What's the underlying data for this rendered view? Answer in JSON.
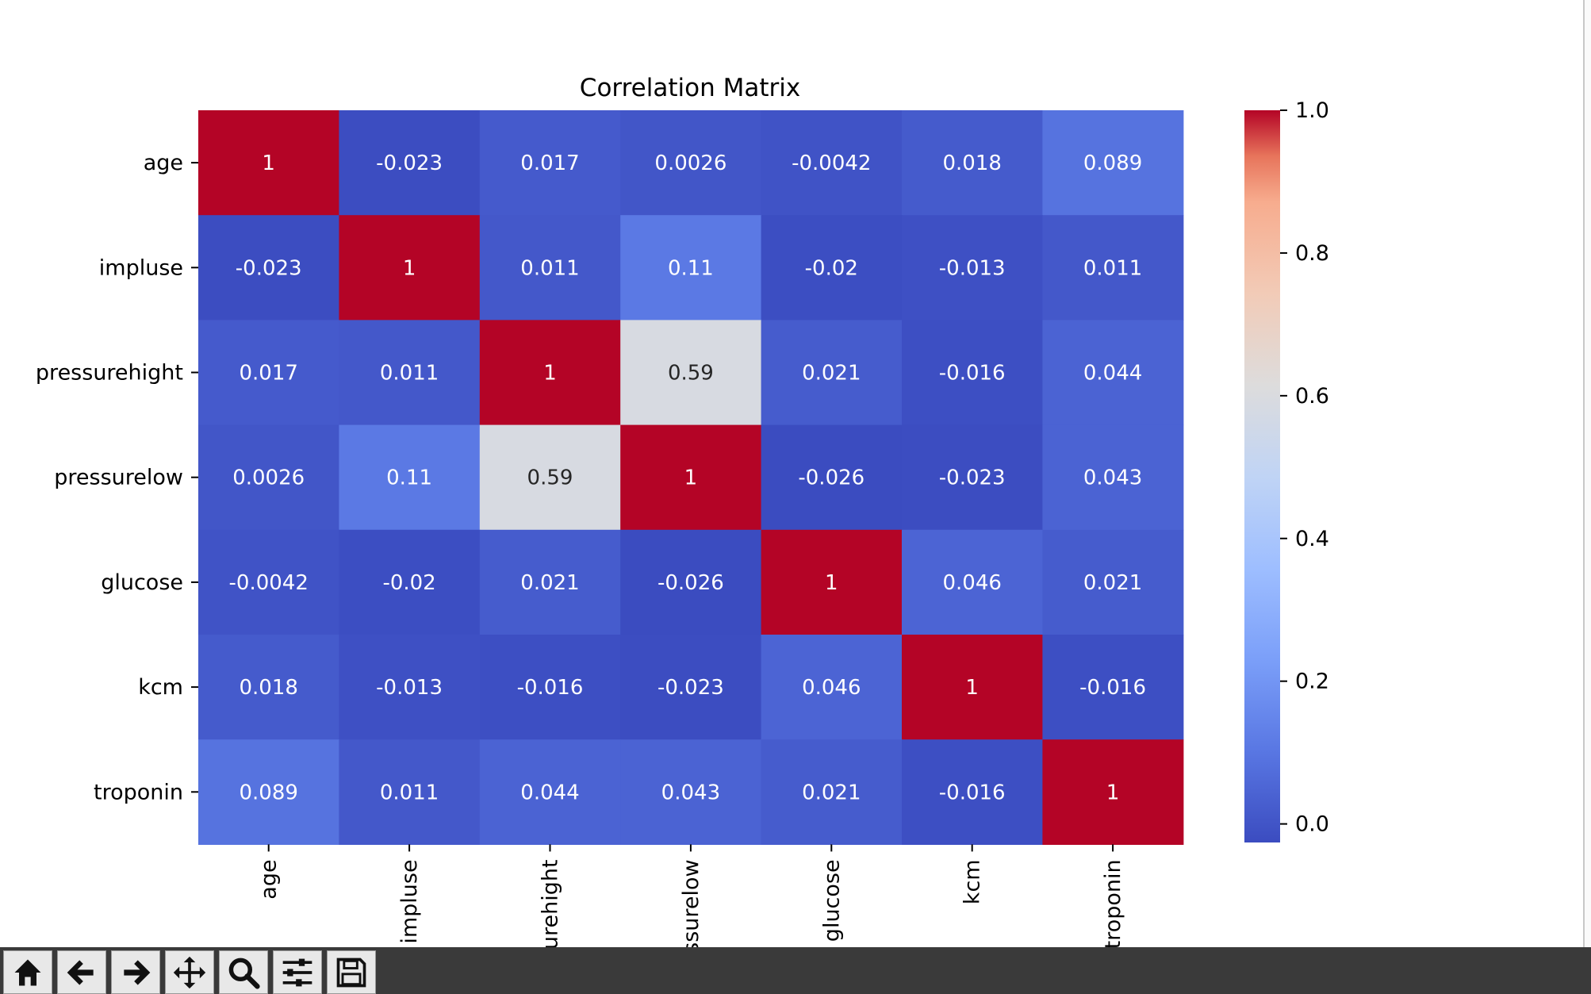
{
  "chart_data": {
    "type": "heatmap",
    "title": "Correlation Matrix",
    "rows": [
      "age",
      "impluse",
      "pressurehight",
      "pressurelow",
      "glucose",
      "kcm",
      "troponin"
    ],
    "columns": [
      "age",
      "impluse",
      "pressurehight",
      "pressurelow",
      "glucose",
      "kcm",
      "troponin"
    ],
    "values": [
      [
        1,
        -0.023,
        0.017,
        0.0026,
        -0.0042,
        0.018,
        0.089
      ],
      [
        -0.023,
        1,
        0.011,
        0.11,
        -0.02,
        -0.013,
        0.011
      ],
      [
        0.017,
        0.011,
        1,
        0.59,
        0.021,
        -0.016,
        0.044
      ],
      [
        0.0026,
        0.11,
        0.59,
        1,
        -0.026,
        -0.023,
        0.043
      ],
      [
        -0.0042,
        -0.02,
        0.021,
        -0.026,
        1,
        0.046,
        0.021
      ],
      [
        0.018,
        -0.013,
        -0.016,
        -0.023,
        0.046,
        1,
        -0.016
      ],
      [
        0.089,
        0.011,
        0.044,
        0.043,
        0.021,
        -0.016,
        1
      ]
    ],
    "colormap": "coolwarm",
    "vmin": -0.026,
    "vmax": 1,
    "colorbar_ticks": [
      "0.0",
      "0.2",
      "0.4",
      "0.6",
      "0.8",
      "1.0"
    ]
  },
  "toolbar": {
    "icons": [
      "home-icon",
      "back-arrow-icon",
      "forward-arrow-icon",
      "pan-icon",
      "zoom-icon",
      "configure-subplots-icon",
      "save-icon"
    ]
  }
}
